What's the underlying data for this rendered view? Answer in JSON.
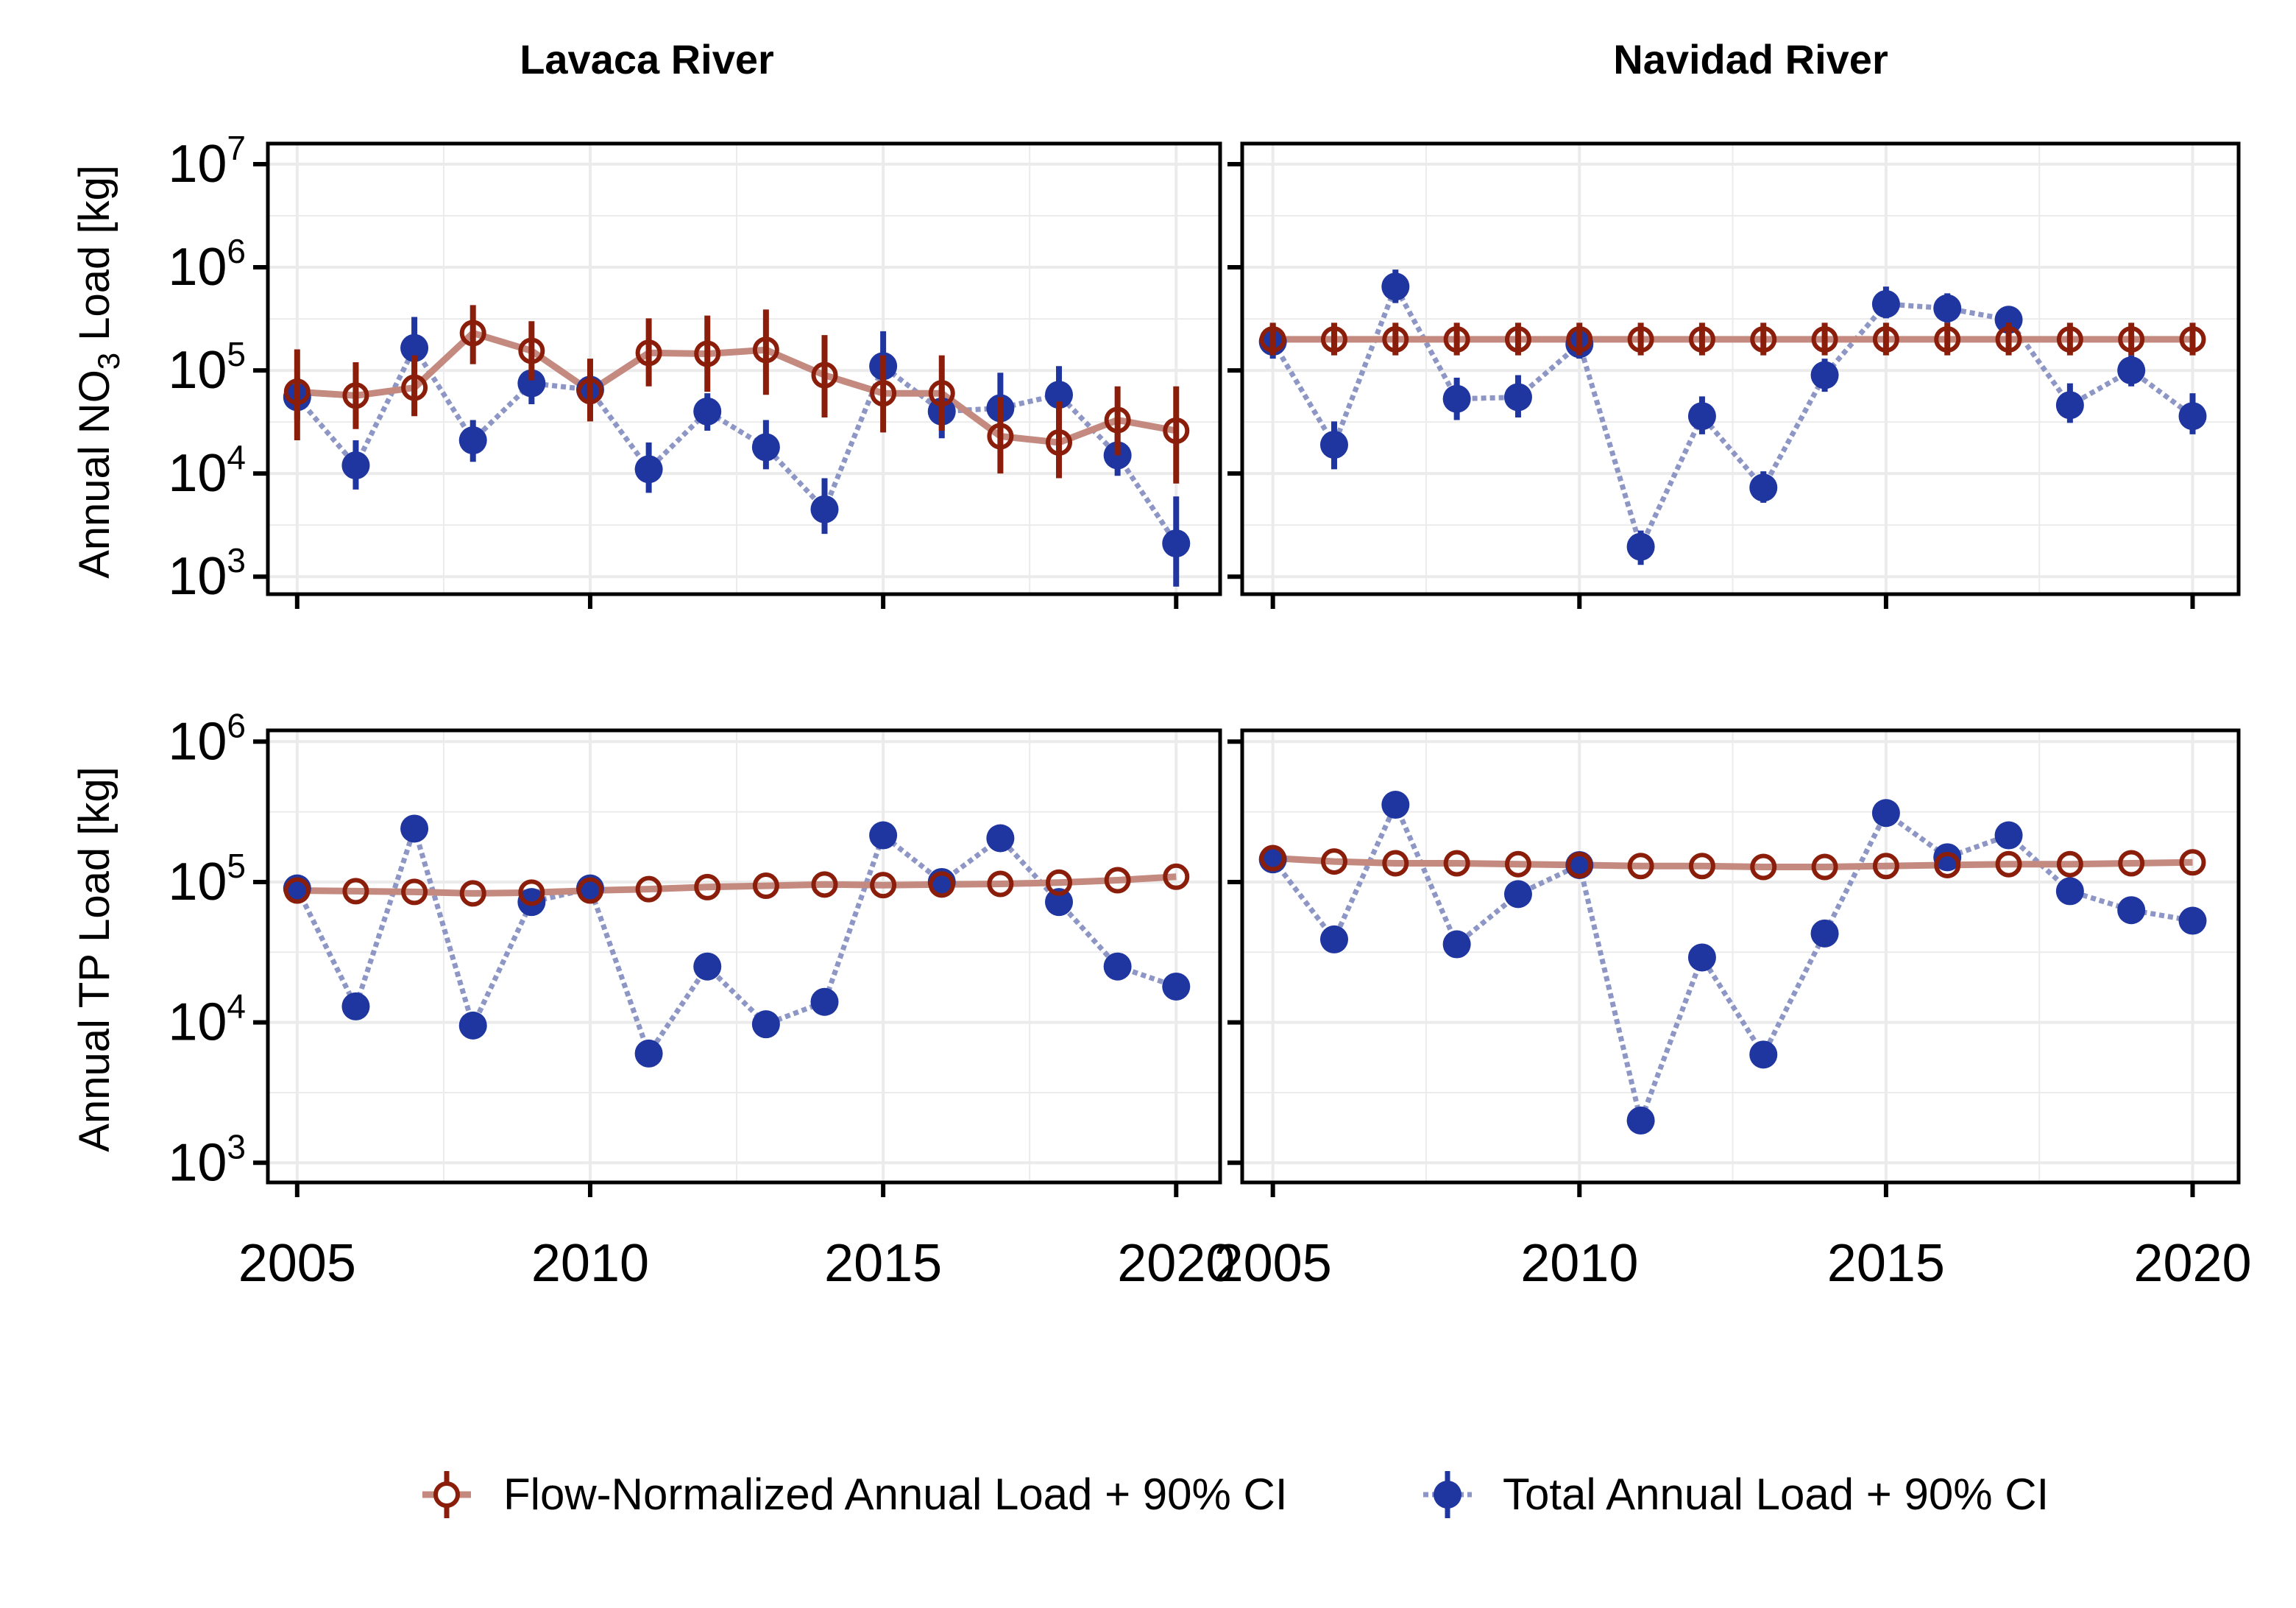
{
  "chart_data": {
    "type": "line",
    "facet_titles": [
      "Lavaca River",
      "Navidad River"
    ],
    "x_ticks": [
      2005,
      2010,
      2015,
      2020
    ],
    "x": [
      2005,
      2006,
      2007,
      2008,
      2009,
      2010,
      2011,
      2012,
      2013,
      2014,
      2015,
      2016,
      2017,
      2018,
      2019,
      2020
    ],
    "xlim": [
      2004.5,
      2020.75
    ],
    "colors": {
      "flow_normalized": "#8b1e0b",
      "flow_normalized_line": "#c48a80",
      "total": "#1f35a0",
      "total_line": "#8d96c5"
    },
    "rows": [
      {
        "ylabel_main": "Annual NO",
        "ylabel_sub": "3",
        "ylabel_rest": " Load [kg]",
        "scale": "log",
        "ylim_exp": [
          2.83,
          7.2
        ],
        "tick_exponents": [
          3,
          4,
          5,
          6,
          7
        ],
        "panels": [
          {
            "river": "Lavaca River",
            "flow_normalized": {
              "values": [
                62000,
                57000,
                68000,
                230000,
                155000,
                63000,
                148000,
                145000,
                158000,
                90000,
                60000,
                60000,
                23000,
                20000,
                33000,
                26000
              ],
              "ci_low": [
                21000,
                27000,
                36000,
                115000,
                80000,
                32000,
                70000,
                62000,
                58000,
                35000,
                25000,
                26000,
                10000,
                9000,
                15000,
                8000
              ],
              "ci_high": [
                160000,
                120000,
                140000,
                430000,
                300000,
                130000,
                320000,
                340000,
                390000,
                220000,
                140000,
                140000,
                55000,
                50000,
                70000,
                70000
              ]
            },
            "total": {
              "values": [
                55000,
                12000,
                165000,
                21000,
                75000,
                65000,
                11000,
                40000,
                18000,
                4500,
                110000,
                40000,
                43000,
                58000,
                15000,
                2100
              ],
              "ci_low": [
                33000,
                7000,
                120000,
                13000,
                47000,
                45000,
                6500,
                26000,
                11000,
                2600,
                75000,
                22000,
                25000,
                37000,
                9500,
                800
              ],
              "ci_high": [
                85000,
                21000,
                330000,
                33000,
                100000,
                90000,
                20000,
                60000,
                33000,
                9000,
                240000,
                70000,
                95000,
                110000,
                25000,
                6000
              ]
            }
          },
          {
            "river": "Navidad River",
            "flow_normalized": {
              "values": [
                200000,
                200000,
                200000,
                200000,
                200000,
                200000,
                200000,
                200000,
                200000,
                200000,
                200000,
                200000,
                200000,
                200000,
                200000,
                200000
              ],
              "ci_low": [
                140000,
                140000,
                140000,
                140000,
                140000,
                140000,
                140000,
                140000,
                140000,
                140000,
                140000,
                140000,
                140000,
                140000,
                140000,
                140000
              ],
              "ci_high": [
                290000,
                290000,
                290000,
                290000,
                290000,
                290000,
                290000,
                290000,
                290000,
                290000,
                290000,
                290000,
                290000,
                290000,
                290000,
                290000
              ]
            },
            "total": {
              "values": [
                190000,
                19000,
                650000,
                53000,
                55000,
                180000,
                1950,
                36000,
                7300,
                90000,
                440000,
                400000,
                310000,
                46000,
                100000,
                36000
              ],
              "ci_low": [
                130000,
                11000,
                450000,
                33000,
                35000,
                130000,
                1300,
                24000,
                5200,
                62000,
                320000,
                290000,
                230000,
                31000,
                70000,
                24000
              ],
              "ci_high": [
                280000,
                32000,
                950000,
                85000,
                90000,
                260000,
                2800,
                56000,
                10500,
                130000,
                650000,
                560000,
                420000,
                75000,
                140000,
                60000
              ]
            }
          }
        ]
      },
      {
        "ylabel_main": "Annual TP Load [kg]",
        "ylabel_sub": "",
        "ylabel_rest": "",
        "scale": "log",
        "ylim_exp": [
          2.86,
          6.08
        ],
        "tick_exponents": [
          3,
          4,
          5,
          6
        ],
        "panels": [
          {
            "river": "Lavaca River",
            "flow_normalized": {
              "values": [
                87000,
                86000,
                85000,
                83000,
                84000,
                87000,
                89000,
                92000,
                94000,
                96000,
                95000,
                96000,
                97000,
                99000,
                103000,
                109000
              ]
            },
            "total": {
              "values": [
                90000,
                13000,
                240000,
                9500,
                72000,
                90000,
                6000,
                25000,
                9700,
                14000,
                215000,
                100000,
                205000,
                72000,
                25000,
                18000
              ]
            }
          },
          {
            "river": "Navidad River",
            "flow_normalized": {
              "values": [
                148000,
                140000,
                136000,
                136000,
                134000,
                132000,
                130000,
                130000,
                128000,
                128000,
                130000,
                132000,
                134000,
                134000,
                136000,
                138000
              ]
            },
            "total": {
              "values": [
                145000,
                39000,
                355000,
                36000,
                82000,
                132000,
                2000,
                29000,
                5900,
                43000,
                310000,
                150000,
                215000,
                86000,
                63000,
                53000
              ]
            }
          }
        ]
      }
    ],
    "legend": {
      "position": "bottom",
      "items": [
        "Flow-Normalized Annual Load + 90% CI",
        "Total Annual Load + 90% CI"
      ]
    }
  }
}
